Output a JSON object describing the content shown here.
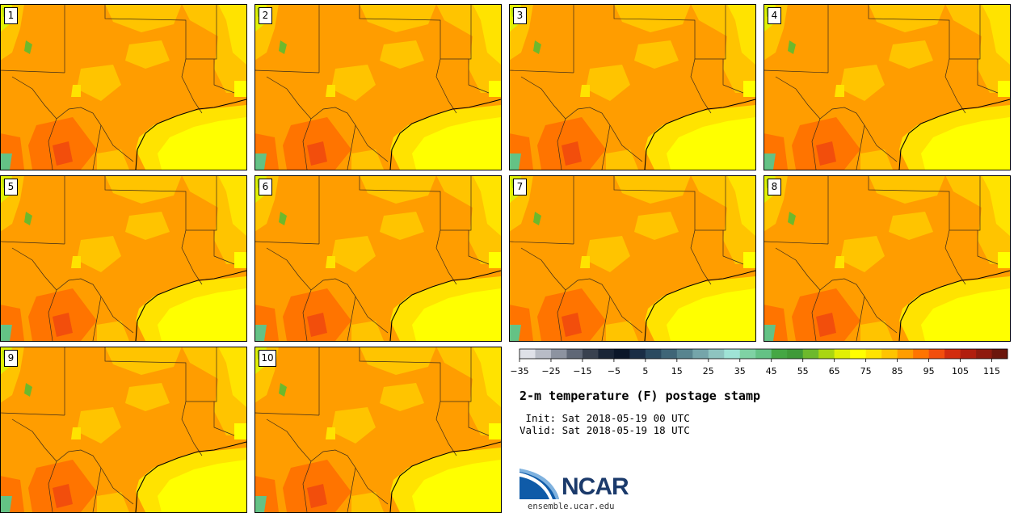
{
  "members": [
    {
      "label": "1"
    },
    {
      "label": "2"
    },
    {
      "label": "3"
    },
    {
      "label": "4"
    },
    {
      "label": "5"
    },
    {
      "label": "6"
    },
    {
      "label": "7"
    },
    {
      "label": "8"
    },
    {
      "label": "9"
    },
    {
      "label": "10"
    }
  ],
  "colorbar": {
    "colors": [
      "#dfe1e8",
      "#b8bcc6",
      "#8d93a0",
      "#5f6776",
      "#39414f",
      "#1a2536",
      "#0b1628",
      "#1a2d45",
      "#2b4a60",
      "#3f6577",
      "#58848f",
      "#75a5aa",
      "#8ec4c0",
      "#9fe3d6",
      "#7fd2a4",
      "#64c285",
      "#45a744",
      "#3f9a38",
      "#6db92c",
      "#a9d611",
      "#e1ef05",
      "#ffff00",
      "#ffe300",
      "#ffc400",
      "#ff9d00",
      "#ff7400",
      "#f24e0c",
      "#d22c0e",
      "#b11e0e",
      "#8f1a0e",
      "#6b160c"
    ],
    "tick_labels": [
      "−35",
      "−25",
      "−15",
      "−5",
      "5",
      "15",
      "25",
      "35",
      "45",
      "55",
      "65",
      "75",
      "85",
      "95",
      "105",
      "115"
    ]
  },
  "title": "2-m temperature (F) postage stamp",
  "init_line": " Init: Sat 2018-05-19 00 UTC",
  "valid_line": "Valid: Sat 2018-05-19 18 UTC",
  "logo": {
    "name": "NCAR",
    "url": "ensemble.ucar.edu"
  }
}
